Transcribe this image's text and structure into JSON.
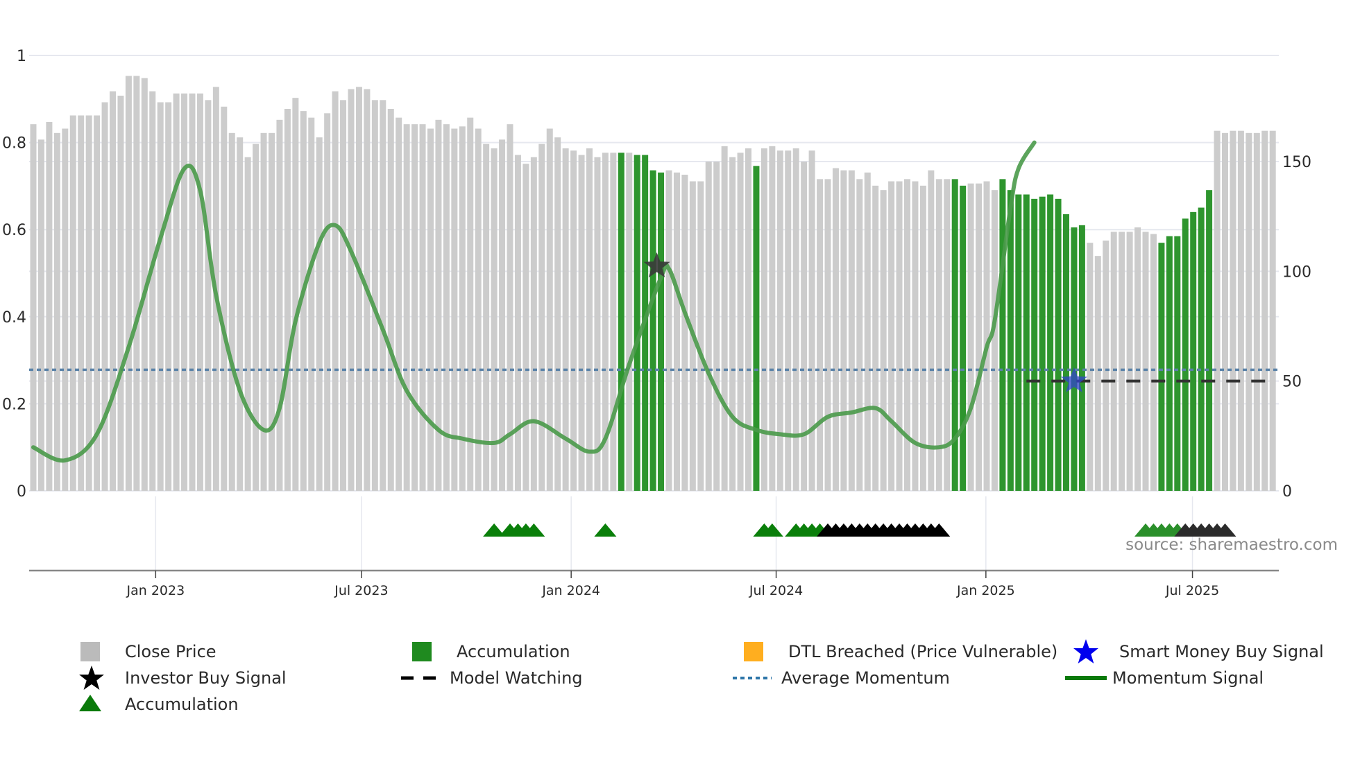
{
  "chart_data": {
    "type": "bar",
    "title": "",
    "xlabel": "",
    "ylabel_left": "",
    "ylabel_right": "",
    "source": "source: sharemaestro.com",
    "left_axis": {
      "ticks": [
        0,
        0.2,
        0.4,
        0.6,
        0.8,
        1
      ],
      "tick_labels": [
        "0",
        "0.2",
        "0.4",
        "0.6",
        "0.8",
        "1"
      ],
      "ylim": [
        0,
        1
      ]
    },
    "right_axis": {
      "ticks": [
        0,
        50,
        100,
        150
      ],
      "tick_labels": [
        "0",
        "50",
        "100",
        "150"
      ],
      "ylim": [
        0,
        187
      ]
    },
    "x_ticks": [
      {
        "label": "Jan 2023",
        "bar_pos": 15.4
      },
      {
        "label": "Jul 2023",
        "bar_pos": 41.3
      },
      {
        "label": "Jan 2024",
        "bar_pos": 67.7
      },
      {
        "label": "Jul 2024",
        "bar_pos": 93.5
      },
      {
        "label": "Jan 2025",
        "bar_pos": 119.9
      },
      {
        "label": "Jul 2025",
        "bar_pos": 145.9
      }
    ],
    "grid": true,
    "legend_position": "bottom",
    "close_price": [
      167,
      160,
      168,
      163,
      165,
      171,
      171,
      171,
      171,
      177,
      182,
      180,
      189,
      189,
      188,
      182,
      177,
      177,
      181,
      181,
      181,
      181,
      178,
      184,
      175,
      163,
      161,
      152,
      158,
      163,
      163,
      169,
      174,
      179,
      173,
      170,
      161,
      172,
      182,
      178,
      183,
      184,
      183,
      178,
      178,
      174,
      170,
      167,
      167,
      167,
      165,
      169,
      167,
      165,
      166,
      170,
      165,
      158,
      156,
      160,
      167,
      153,
      149,
      152,
      158,
      165,
      161,
      156,
      155,
      153,
      156,
      152,
      154,
      154,
      154,
      154,
      153,
      153,
      146,
      145,
      146,
      145,
      144,
      141,
      141,
      150,
      150,
      157,
      152,
      154,
      156,
      148,
      156,
      157,
      155,
      155,
      156,
      150,
      155,
      142,
      142,
      147,
      146,
      146,
      142,
      145,
      139,
      137,
      141,
      141,
      142,
      141,
      139,
      146,
      142,
      142,
      142,
      139,
      140,
      140,
      141,
      137,
      142,
      137,
      135,
      135,
      133,
      134,
      135,
      133,
      126,
      120,
      121,
      113,
      107,
      114,
      118,
      118,
      118,
      120,
      118,
      117,
      113,
      116,
      116,
      124,
      127,
      129,
      137,
      164,
      163,
      164,
      164,
      163,
      163,
      164,
      164
    ],
    "accumulation_bar_indices": [
      74,
      76,
      77,
      78,
      79,
      91,
      116,
      117,
      122,
      123,
      124,
      125,
      126,
      127,
      128,
      129,
      130,
      131,
      132,
      142,
      143,
      144,
      145,
      146,
      147,
      148
    ],
    "momentum_signal": [
      [
        0,
        0.1
      ],
      [
        4,
        0.07
      ],
      [
        8,
        0.13
      ],
      [
        12,
        0.33
      ],
      [
        16,
        0.58
      ],
      [
        19,
        0.74
      ],
      [
        21,
        0.69
      ],
      [
        23,
        0.45
      ],
      [
        26,
        0.23
      ],
      [
        29,
        0.14
      ],
      [
        31,
        0.19
      ],
      [
        33,
        0.39
      ],
      [
        36,
        0.57
      ],
      [
        38,
        0.61
      ],
      [
        40,
        0.55
      ],
      [
        44,
        0.37
      ],
      [
        47,
        0.23
      ],
      [
        51,
        0.14
      ],
      [
        54,
        0.12
      ],
      [
        58,
        0.11
      ],
      [
        60,
        0.13
      ],
      [
        63,
        0.16
      ],
      [
        67,
        0.12
      ],
      [
        70,
        0.09
      ],
      [
        72,
        0.12
      ],
      [
        75,
        0.29
      ],
      [
        79,
        0.49
      ],
      [
        80,
        0.51
      ],
      [
        82,
        0.41
      ],
      [
        85,
        0.27
      ],
      [
        88,
        0.17
      ],
      [
        91,
        0.14
      ],
      [
        94,
        0.13
      ],
      [
        97,
        0.13
      ],
      [
        100,
        0.17
      ],
      [
        103,
        0.18
      ],
      [
        106,
        0.19
      ],
      [
        108,
        0.16
      ],
      [
        111,
        0.11
      ],
      [
        114,
        0.1
      ],
      [
        116,
        0.12
      ],
      [
        118,
        0.19
      ],
      [
        120,
        0.33
      ],
      [
        121,
        0.39
      ],
      [
        123,
        0.65
      ],
      [
        124,
        0.74
      ],
      [
        126,
        0.8
      ]
    ],
    "average_momentum": 0.278,
    "model_watching": {
      "value_right_axis": 50,
      "from_bar": 125,
      "to_bar": 156
    },
    "investor_buy_signal": {
      "bar": 79,
      "value_left": 0.5
    },
    "smart_money_buy_signal": {
      "bar": 131,
      "value_right_axis": 50
    },
    "accumulation_markers": [
      58,
      60,
      61,
      62,
      63,
      72,
      92,
      93,
      96,
      97,
      98,
      99,
      100,
      101,
      102,
      103,
      104,
      105,
      106,
      107,
      108,
      109,
      110,
      111,
      112,
      113,
      114,
      140,
      141,
      142,
      143,
      144,
      145,
      146,
      147,
      148,
      149,
      150
    ],
    "accumulation_markers_dark_from": [
      100,
      145
    ]
  },
  "legend": [
    {
      "label": "Close Price",
      "icon": "square",
      "color": "#bbbbbb"
    },
    {
      "label": "Accumulation",
      "icon": "square",
      "color": "#1f8a1f"
    },
    {
      "label": "DTL Breached (Price Vulnerable)",
      "icon": "square",
      "color": "#ffae1f"
    },
    {
      "label": "Smart Money Buy Signal",
      "icon": "star",
      "color": "#0000ee"
    },
    {
      "label": "Investor Buy Signal",
      "icon": "star",
      "color": "#000000"
    },
    {
      "label": "Model Watching",
      "icon": "dash",
      "color": "#000000"
    },
    {
      "label": "Average Momentum",
      "icon": "dot",
      "color": "#2e76a8"
    },
    {
      "label": "Momentum Signal",
      "icon": "line",
      "color": "#0a7a0a"
    },
    {
      "label": "Accumulation",
      "icon": "triangle",
      "color": "#0a7a0a"
    }
  ],
  "colors": {
    "close_bar": "#cccccc",
    "accumulation_bar": "#2e952e",
    "momentum_line": "#4a9a4a",
    "average_momentum": "#5a82a8",
    "axis_line": "#888888",
    "grid": "#e6e8ef"
  }
}
